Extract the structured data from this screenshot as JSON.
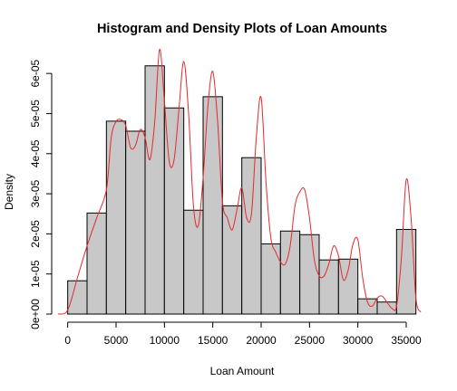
{
  "colors": {
    "bar_fill": "#c8c8c8",
    "bar_stroke": "#000000",
    "density": "#e8282c",
    "axis": "#000000"
  },
  "chart_data": {
    "type": "bar",
    "title": "Histogram and Density Plots of Loan Amounts",
    "xlabel": "Loan Amount",
    "ylabel": "Density",
    "xlim": [
      -1000,
      36500
    ],
    "ylim": [
      0,
      6.5e-05
    ],
    "xticks": [
      0,
      5000,
      10000,
      15000,
      20000,
      25000,
      30000,
      35000
    ],
    "xtick_labels": [
      "0",
      "5000",
      "10000",
      "15000",
      "20000",
      "25000",
      "30000",
      "35000"
    ],
    "yticks": [
      0,
      1e-05,
      2e-05,
      3e-05,
      4e-05,
      5e-05,
      6e-05
    ],
    "ytick_labels": [
      "0e+00",
      "1e-05",
      "2e-05",
      "3e-05",
      "4e-05",
      "5e-05",
      "6e-05"
    ],
    "grid": false,
    "legend": "none",
    "histogram": {
      "breaks": [
        0,
        2000,
        4000,
        6000,
        8000,
        10000,
        12000,
        14000,
        16000,
        18000,
        20000,
        22000,
        24000,
        26000,
        28000,
        30000,
        32000,
        34000,
        36000
      ],
      "density": [
        8.3e-06,
        2.52e-05,
        4.81e-05,
        4.56e-05,
        6.19e-05,
        5.14e-05,
        2.59e-05,
        5.42e-05,
        2.7e-05,
        3.9e-05,
        1.75e-05,
        2.07e-05,
        1.98e-05,
        1.35e-05,
        1.37e-05,
        3.8e-06,
        3e-06,
        2.11e-05
      ]
    },
    "density_curve": {
      "x": [
        -1000,
        0,
        1000,
        2000,
        3000,
        4000,
        4500,
        5000,
        5500,
        6000,
        6500,
        7000,
        7500,
        8000,
        8500,
        9000,
        9500,
        10000,
        10500,
        11000,
        11500,
        12000,
        12500,
        13000,
        13500,
        14000,
        14500,
        15000,
        15500,
        16000,
        16500,
        17000,
        17500,
        18000,
        18500,
        19000,
        19500,
        20000,
        20500,
        21000,
        21500,
        22000,
        22500,
        23000,
        23500,
        24000,
        24500,
        25000,
        25500,
        26000,
        26500,
        27000,
        27500,
        28000,
        28500,
        29000,
        29500,
        30000,
        30500,
        31000,
        31500,
        32000,
        32500,
        33000,
        33500,
        34000,
        34500,
        35000,
        35500,
        36000,
        36500
      ],
      "y": [
        0.0,
        1e-06,
        9e-06,
        1.7e-05,
        2.4e-05,
        3.1e-05,
        4.4e-05,
        4.8e-05,
        4.85e-05,
        4.7e-05,
        4.15e-05,
        4.2e-05,
        4.6e-05,
        4.4e-05,
        3.85e-05,
        4.8e-05,
        6.6e-05,
        5.3e-05,
        3.8e-05,
        3.85e-05,
        5.1e-05,
        6.3e-05,
        5e-05,
        2.7e-05,
        2.2e-05,
        3.4e-05,
        5.2e-05,
        6.05e-05,
        4.8e-05,
        2.8e-05,
        2.4e-05,
        2.1e-05,
        2.6e-05,
        3.15e-05,
        2.4e-05,
        2.5e-05,
        4.4e-05,
        5.4e-05,
        3.3e-05,
        1.9e-05,
        1.55e-05,
        1.3e-05,
        1.25e-05,
        1.7e-05,
        2.7e-05,
        3.05e-05,
        3.1e-05,
        2.4e-05,
        1.35e-05,
        9.5e-06,
        9.5e-06,
        1.25e-05,
        1.7e-05,
        1.45e-05,
        8.5e-06,
        1.1e-05,
        1.75e-05,
        1.85e-05,
        9e-06,
        3e-06,
        2e-06,
        4e-06,
        4.5e-06,
        3e-06,
        1.5e-06,
        2e-06,
        1.4e-05,
        3.35e-05,
        2.4e-05,
        4e-06,
        5e-07
      ]
    }
  }
}
